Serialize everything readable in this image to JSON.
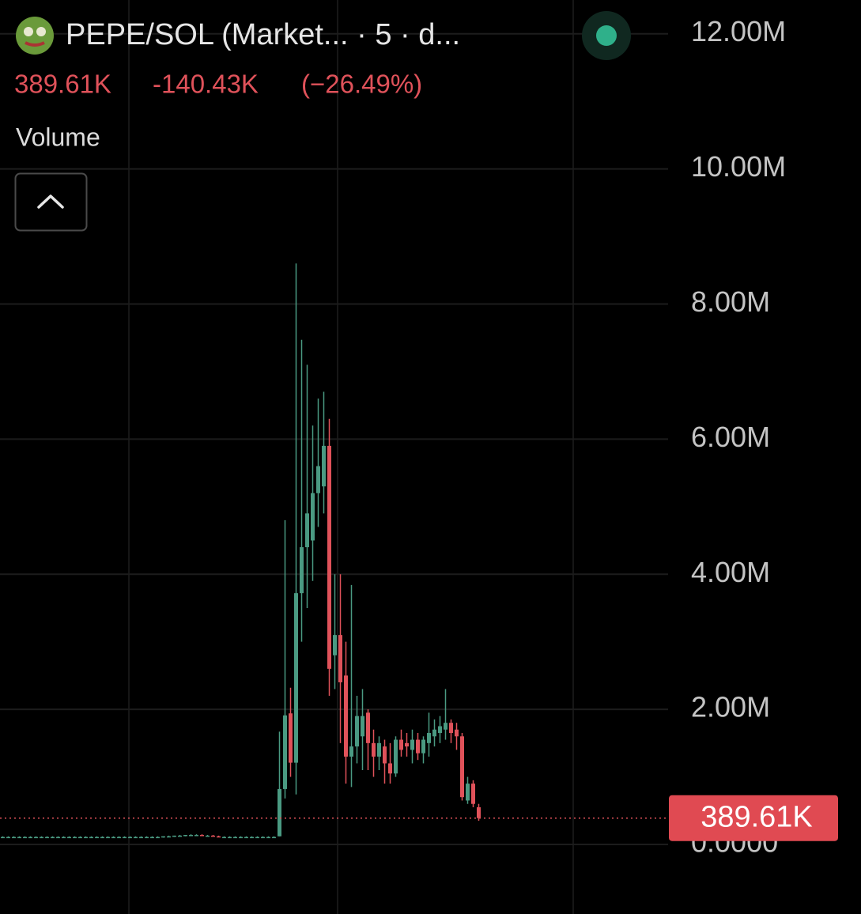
{
  "header": {
    "title": "PEPE/SOL (Market... · 5 · d...",
    "change": "-140.43K",
    "change_pct": "(−26.49%)",
    "indicator": "Volume"
  },
  "chart_data": {
    "type": "candlestick",
    "up_color": "#4a9a82",
    "down_color": "#e0525a",
    "ylim": [
      -1.03,
      12.5
    ],
    "yticks": [
      {
        "value": 0,
        "label": "0.0000"
      },
      {
        "value": 2,
        "label": "2.00M"
      },
      {
        "value": 4,
        "label": "4.00M"
      },
      {
        "value": 6,
        "label": "6.00M"
      },
      {
        "value": 8,
        "label": "8.00M"
      },
      {
        "value": 10,
        "label": "10.00M"
      },
      {
        "value": 12,
        "label": "12.00M"
      }
    ],
    "grid": true,
    "last_price": {
      "value": 0.38961,
      "label": "389.61K"
    },
    "open": [
      0.11,
      0.11,
      0.11,
      0.11,
      0.11,
      0.11,
      0.11,
      0.11,
      0.11,
      0.11,
      0.11,
      0.11,
      0.11,
      0.11,
      0.11,
      0.11,
      0.11,
      0.11,
      0.11,
      0.11,
      0.11,
      0.11,
      0.11,
      0.11,
      0.11,
      0.11,
      0.11,
      0.11,
      0.11,
      0.11,
      0.12,
      0.12,
      0.13,
      0.13,
      0.14,
      0.14,
      0.14,
      0.13,
      0.13,
      0.12,
      0.11,
      0.11,
      0.11,
      0.11,
      0.11,
      0.11,
      0.11,
      0.11,
      0.11,
      0.11,
      0.12,
      0.82,
      1.94,
      1.21,
      3.72,
      4.4,
      4.5,
      5.2,
      5.3,
      5.9,
      2.8,
      3.1,
      2.5,
      1.3,
      1.45,
      1.6,
      1.95,
      1.5,
      1.3,
      1.45,
      1.2,
      1.05,
      1.55,
      1.5,
      1.4,
      1.55,
      1.35,
      1.5,
      1.6,
      1.65,
      1.7,
      1.8,
      1.7,
      1.6,
      0.65,
      0.9,
      0.55
    ],
    "high": [
      0.12,
      0.12,
      0.12,
      0.12,
      0.12,
      0.12,
      0.12,
      0.12,
      0.12,
      0.12,
      0.12,
      0.12,
      0.12,
      0.12,
      0.12,
      0.12,
      0.12,
      0.12,
      0.12,
      0.12,
      0.12,
      0.12,
      0.12,
      0.12,
      0.12,
      0.12,
      0.12,
      0.12,
      0.12,
      0.12,
      0.13,
      0.13,
      0.14,
      0.14,
      0.15,
      0.15,
      0.15,
      0.14,
      0.14,
      0.13,
      0.12,
      0.12,
      0.12,
      0.12,
      0.12,
      0.12,
      0.12,
      0.12,
      0.12,
      0.12,
      1.67,
      4.8,
      2.32,
      8.6,
      7.47,
      7.1,
      6.2,
      6.6,
      6.7,
      6.3,
      4.0,
      4.0,
      3.0,
      3.84,
      2.2,
      2.3,
      2.0,
      1.7,
      1.6,
      1.55,
      1.5,
      1.6,
      1.7,
      1.65,
      1.7,
      1.65,
      1.6,
      1.95,
      1.85,
      1.9,
      2.3,
      1.85,
      1.8,
      1.65,
      1.0,
      0.95,
      0.6
    ],
    "low": [
      0.1,
      0.1,
      0.1,
      0.1,
      0.1,
      0.1,
      0.1,
      0.1,
      0.1,
      0.1,
      0.1,
      0.1,
      0.1,
      0.1,
      0.1,
      0.1,
      0.1,
      0.1,
      0.1,
      0.1,
      0.1,
      0.1,
      0.1,
      0.1,
      0.1,
      0.1,
      0.1,
      0.1,
      0.1,
      0.1,
      0.11,
      0.11,
      0.12,
      0.12,
      0.13,
      0.13,
      0.13,
      0.12,
      0.12,
      0.11,
      0.1,
      0.1,
      0.1,
      0.1,
      0.1,
      0.1,
      0.1,
      0.1,
      0.1,
      0.1,
      0.12,
      0.68,
      1.0,
      0.74,
      3.0,
      3.5,
      3.9,
      4.7,
      4.9,
      2.2,
      2.3,
      1.5,
      0.9,
      0.85,
      1.2,
      1.1,
      1.1,
      1.0,
      1.1,
      0.9,
      0.9,
      1.0,
      1.3,
      1.3,
      1.2,
      1.25,
      1.2,
      1.3,
      1.45,
      1.5,
      1.55,
      1.5,
      1.4,
      0.65,
      0.6,
      0.55,
      0.35
    ],
    "close": [
      0.11,
      0.11,
      0.11,
      0.11,
      0.11,
      0.11,
      0.11,
      0.11,
      0.11,
      0.11,
      0.11,
      0.11,
      0.11,
      0.11,
      0.11,
      0.11,
      0.11,
      0.11,
      0.11,
      0.11,
      0.11,
      0.11,
      0.11,
      0.11,
      0.11,
      0.11,
      0.11,
      0.11,
      0.11,
      0.12,
      0.12,
      0.13,
      0.13,
      0.14,
      0.14,
      0.14,
      0.13,
      0.13,
      0.12,
      0.11,
      0.11,
      0.11,
      0.11,
      0.11,
      0.11,
      0.11,
      0.11,
      0.11,
      0.11,
      0.11,
      0.82,
      1.91,
      1.21,
      3.72,
      4.4,
      4.9,
      5.2,
      5.6,
      5.9,
      2.6,
      3.1,
      2.4,
      1.3,
      1.45,
      1.9,
      1.9,
      1.5,
      1.3,
      1.5,
      1.2,
      1.05,
      1.55,
      1.4,
      1.45,
      1.55,
      1.35,
      1.55,
      1.65,
      1.7,
      1.75,
      1.8,
      1.65,
      1.6,
      0.7,
      0.9,
      0.6,
      0.39
    ]
  }
}
